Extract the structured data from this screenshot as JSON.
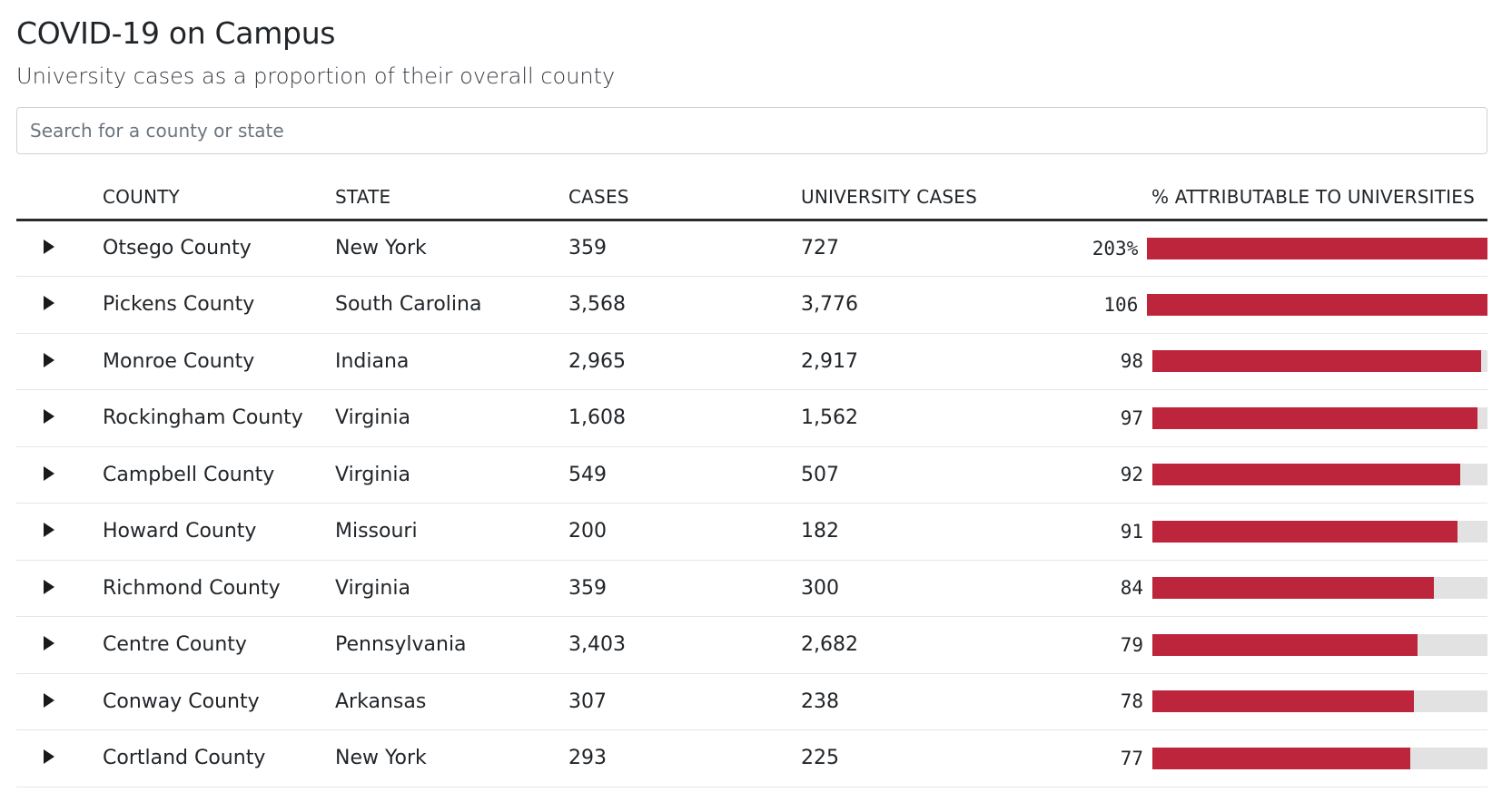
{
  "header": {
    "title": "COVID-19 on Campus",
    "subtitle": "University cases as a proportion of their overall county"
  },
  "search": {
    "placeholder": "Search for a county or state",
    "value": ""
  },
  "table": {
    "columns": {
      "county": "COUNTY",
      "state": "STATE",
      "cases": "CASES",
      "university_cases": "UNIVERSITY CASES",
      "pct": "% ATTRIBUTABLE TO UNIVERSITIES"
    },
    "rows": [
      {
        "county": "Otsego County",
        "state": "New York",
        "cases": "359",
        "university_cases": "727",
        "pct_label": "203%",
        "pct": 203
      },
      {
        "county": "Pickens County",
        "state": "South Carolina",
        "cases": "3,568",
        "university_cases": "3,776",
        "pct_label": "106",
        "pct": 106
      },
      {
        "county": "Monroe County",
        "state": "Indiana",
        "cases": "2,965",
        "university_cases": "2,917",
        "pct_label": "98",
        "pct": 98
      },
      {
        "county": "Rockingham County",
        "state": "Virginia",
        "cases": "1,608",
        "university_cases": "1,562",
        "pct_label": "97",
        "pct": 97
      },
      {
        "county": "Campbell County",
        "state": "Virginia",
        "cases": "549",
        "university_cases": "507",
        "pct_label": "92",
        "pct": 92
      },
      {
        "county": "Howard County",
        "state": "Missouri",
        "cases": "200",
        "university_cases": "182",
        "pct_label": "91",
        "pct": 91
      },
      {
        "county": "Richmond County",
        "state": "Virginia",
        "cases": "359",
        "university_cases": "300",
        "pct_label": "84",
        "pct": 84
      },
      {
        "county": "Centre County",
        "state": "Pennsylvania",
        "cases": "3,403",
        "university_cases": "2,682",
        "pct_label": "79",
        "pct": 79
      },
      {
        "county": "Conway County",
        "state": "Arkansas",
        "cases": "307",
        "university_cases": "238",
        "pct_label": "78",
        "pct": 78
      },
      {
        "county": "Cortland County",
        "state": "New York",
        "cases": "293",
        "university_cases": "225",
        "pct_label": "77",
        "pct": 77
      }
    ]
  },
  "colors": {
    "bar_fill": "#bd253c",
    "bar_track": "#e2e2e2"
  }
}
